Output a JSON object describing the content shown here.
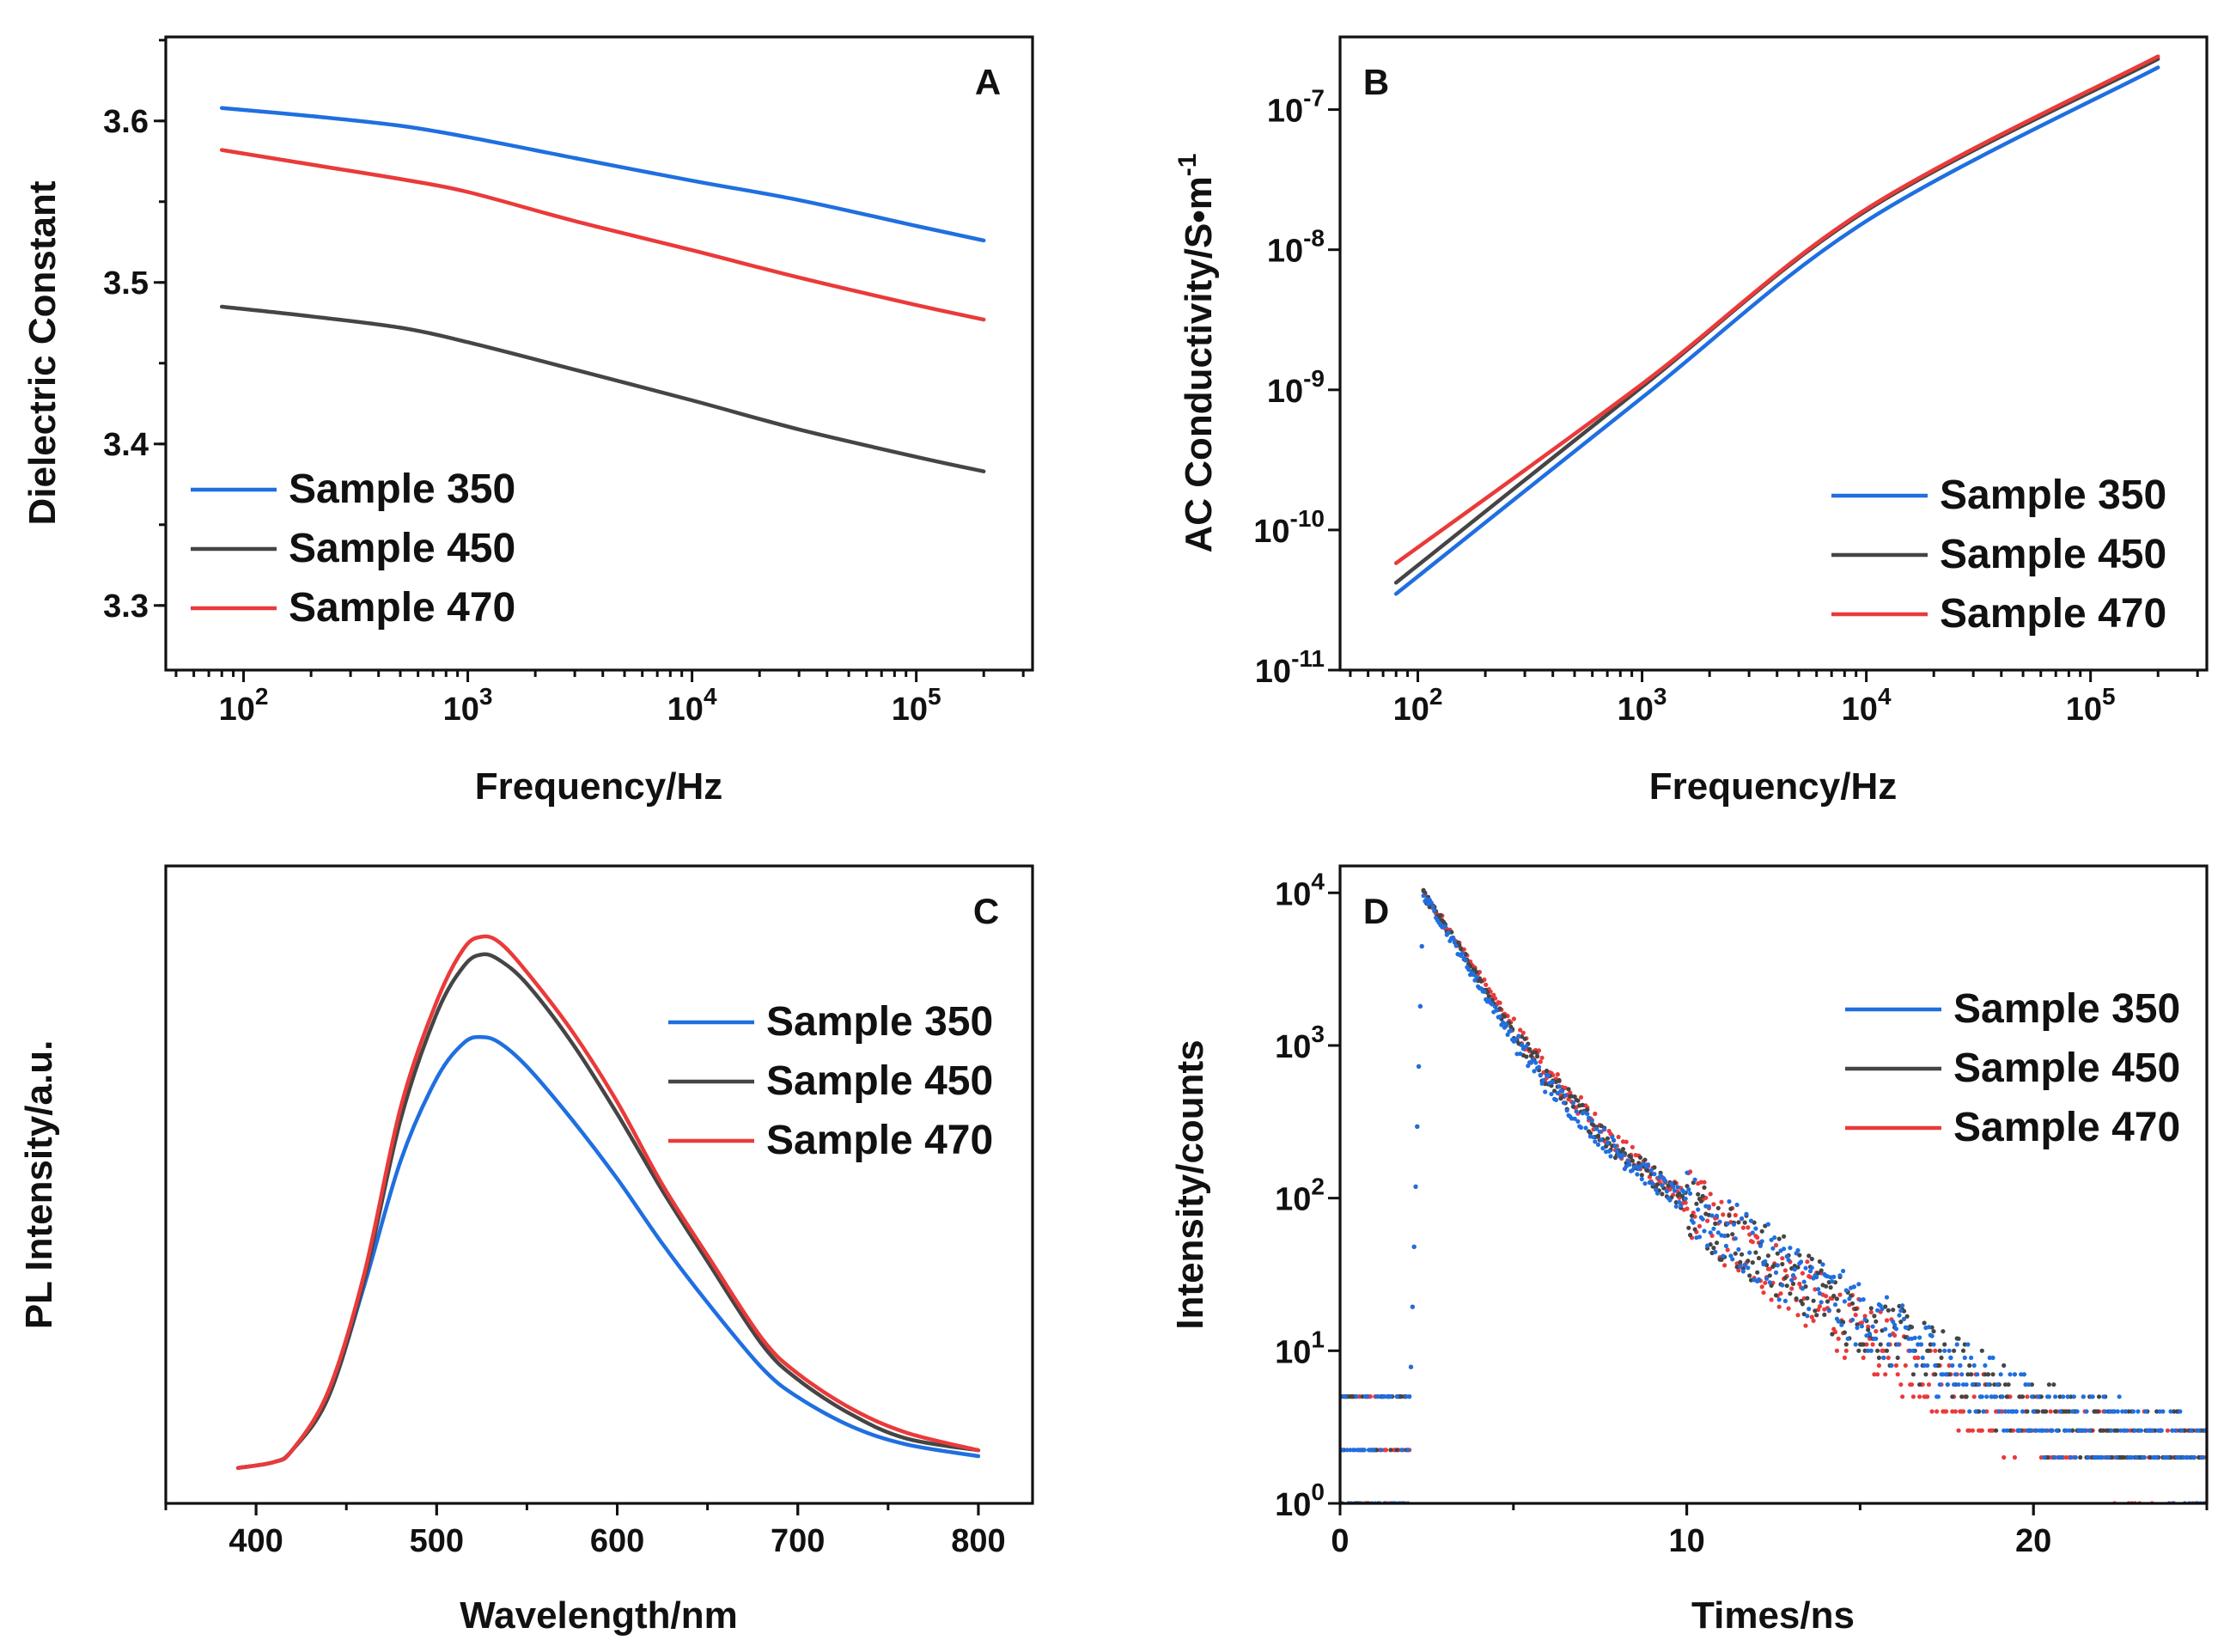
{
  "colors": {
    "sample_350": "#1f6fe0",
    "sample_450": "#454545",
    "sample_470": "#ea3a3a",
    "axis": "#111111"
  },
  "chart_data": [
    {
      "id": "A",
      "panel_label": "A",
      "type": "line",
      "xscale": "log",
      "yscale": "linear",
      "xlabel": "Frequency/Hz",
      "ylabel": "Dielectric Constant",
      "xlim": [
        45,
        330000
      ],
      "ylim": [
        3.26,
        3.652
      ],
      "xticks": [
        {
          "value": 100,
          "base": "10",
          "exp": "2"
        },
        {
          "value": 1000,
          "base": "10",
          "exp": "3"
        },
        {
          "value": 10000,
          "base": "10",
          "exp": "4"
        },
        {
          "value": 100000,
          "base": "10",
          "exp": "5"
        }
      ],
      "yticks": [
        {
          "value": 3.3,
          "label": "3.3"
        },
        {
          "value": 3.4,
          "label": "3.4"
        },
        {
          "value": 3.5,
          "label": "3.5"
        },
        {
          "value": 3.6,
          "label": "3.6"
        }
      ],
      "legend": "lower-left",
      "series": [
        {
          "name": "Sample 350",
          "color": "#1f6fe0",
          "x": [
            80,
            200,
            500,
            1000,
            3000,
            10000,
            30000,
            100000,
            200000
          ],
          "y": [
            3.608,
            3.603,
            3.597,
            3.59,
            3.577,
            3.563,
            3.551,
            3.535,
            3.526
          ]
        },
        {
          "name": "Sample 450",
          "color": "#454545",
          "x": [
            80,
            200,
            500,
            1000,
            3000,
            10000,
            30000,
            100000,
            200000
          ],
          "y": [
            3.485,
            3.479,
            3.472,
            3.463,
            3.446,
            3.427,
            3.409,
            3.392,
            3.383
          ]
        },
        {
          "name": "Sample 470",
          "color": "#ea3a3a",
          "x": [
            80,
            200,
            500,
            1000,
            3000,
            10000,
            30000,
            100000,
            200000
          ],
          "y": [
            3.582,
            3.573,
            3.564,
            3.556,
            3.538,
            3.52,
            3.503,
            3.486,
            3.477
          ]
        }
      ]
    },
    {
      "id": "B",
      "panel_label": "B",
      "type": "line",
      "xscale": "log",
      "yscale": "log",
      "xlabel": "Frequency/Hz",
      "ylabel_text": "AC Conductivity/S•m",
      "ylabel_exp": "-1",
      "xlim": [
        45,
        330000
      ],
      "ylim": [
        1e-11,
        3.3e-07
      ],
      "xticks": [
        {
          "value": 100,
          "base": "10",
          "exp": "2"
        },
        {
          "value": 1000,
          "base": "10",
          "exp": "3"
        },
        {
          "value": 10000,
          "base": "10",
          "exp": "4"
        },
        {
          "value": 100000,
          "base": "10",
          "exp": "5"
        }
      ],
      "yticks": [
        {
          "value": 1e-11,
          "base": "10",
          "exp": "-11"
        },
        {
          "value": 1e-10,
          "base": "10",
          "exp": "-10"
        },
        {
          "value": 1e-09,
          "base": "10",
          "exp": "-9"
        },
        {
          "value": 1e-08,
          "base": "10",
          "exp": "-8"
        },
        {
          "value": 1e-07,
          "base": "10",
          "exp": "-7"
        }
      ],
      "legend": "lower-right",
      "series": [
        {
          "name": "Sample 350",
          "color": "#1f6fe0",
          "x": [
            80,
            1000,
            10000,
            200000
          ],
          "y": [
            3.5e-11,
            8.8e-10,
            1.6e-08,
            2e-07
          ]
        },
        {
          "name": "Sample 450",
          "color": "#454545",
          "x": [
            80,
            1000,
            10000,
            200000
          ],
          "y": [
            4.2e-11,
            1.05e-09,
            1.9e-08,
            2.3e-07
          ]
        },
        {
          "name": "Sample 470",
          "color": "#ea3a3a",
          "x": [
            80,
            1000,
            10000,
            200000
          ],
          "y": [
            5.8e-11,
            1.1e-09,
            1.95e-08,
            2.4e-07
          ]
        }
      ]
    },
    {
      "id": "C",
      "panel_label": "C",
      "type": "line",
      "xscale": "linear",
      "yscale": "linear",
      "xlabel": "Wavelength/nm",
      "ylabel": "PL Intensity/a.u.",
      "xlim": [
        350,
        830
      ],
      "ylim": [
        0,
        1.08
      ],
      "xticks": [
        {
          "value": 400,
          "label": "400"
        },
        {
          "value": 500,
          "label": "500"
        },
        {
          "value": 600,
          "label": "600"
        },
        {
          "value": 700,
          "label": "700"
        },
        {
          "value": 800,
          "label": "800"
        }
      ],
      "yticks": [],
      "legend": "right",
      "series": [
        {
          "name": "Sample 350",
          "color": "#1f6fe0",
          "x": [
            390,
            410,
            420,
            440,
            460,
            480,
            500,
            515,
            525,
            535,
            550,
            575,
            600,
            625,
            650,
            680,
            700,
            730,
            760,
            800
          ],
          "y": [
            0.06,
            0.07,
            0.09,
            0.18,
            0.37,
            0.58,
            0.72,
            0.78,
            0.79,
            0.78,
            0.74,
            0.65,
            0.55,
            0.44,
            0.34,
            0.23,
            0.18,
            0.13,
            0.1,
            0.08
          ]
        },
        {
          "name": "Sample 450",
          "color": "#454545",
          "x": [
            390,
            410,
            420,
            440,
            460,
            480,
            500,
            515,
            525,
            535,
            550,
            575,
            600,
            625,
            650,
            680,
            700,
            730,
            760,
            800
          ],
          "y": [
            0.06,
            0.07,
            0.09,
            0.18,
            0.38,
            0.65,
            0.83,
            0.91,
            0.93,
            0.92,
            0.88,
            0.78,
            0.66,
            0.53,
            0.41,
            0.27,
            0.21,
            0.15,
            0.11,
            0.09
          ]
        },
        {
          "name": "Sample 470",
          "color": "#ea3a3a",
          "x": [
            390,
            410,
            420,
            440,
            460,
            480,
            500,
            515,
            525,
            535,
            550,
            575,
            600,
            625,
            650,
            680,
            700,
            730,
            760,
            800
          ],
          "y": [
            0.06,
            0.07,
            0.09,
            0.19,
            0.39,
            0.67,
            0.85,
            0.94,
            0.96,
            0.95,
            0.9,
            0.8,
            0.68,
            0.54,
            0.42,
            0.28,
            0.22,
            0.16,
            0.12,
            0.09
          ]
        }
      ]
    },
    {
      "id": "D",
      "panel_label": "D",
      "type": "scatter",
      "xscale": "linear",
      "yscale": "log",
      "xlabel": "Times/ns",
      "ylabel": "Intensity/counts",
      "xlim": [
        0,
        25
      ],
      "ylim": [
        1,
        15000
      ],
      "xticks": [
        {
          "value": 0,
          "label": "0"
        },
        {
          "value": 10,
          "label": "10"
        },
        {
          "value": 20,
          "label": "20"
        }
      ],
      "yticks": [
        {
          "value": 1,
          "base": "10",
          "exp": "0"
        },
        {
          "value": 10,
          "base": "10",
          "exp": "1"
        },
        {
          "value": 100,
          "base": "10",
          "exp": "2"
        },
        {
          "value": 1000,
          "base": "10",
          "exp": "3"
        },
        {
          "value": 10000,
          "base": "10",
          "exp": "4"
        }
      ],
      "legend": "top-right",
      "series": [
        {
          "name": "Sample 350",
          "color": "#1f6fe0",
          "x": [
            2.0,
            2.4,
            3,
            4,
            5,
            6,
            8,
            10,
            12,
            15,
            18,
            20,
            25
          ],
          "y": [
            3,
            9800,
            6000,
            2500,
            1100,
            550,
            200,
            90,
            45,
            17,
            7,
            4,
            2
          ]
        },
        {
          "name": "Sample 450",
          "color": "#454545",
          "x": [
            2.0,
            2.4,
            3,
            4,
            5,
            6,
            8,
            10,
            12,
            15,
            18,
            20,
            25
          ],
          "y": [
            3,
            9800,
            6200,
            2700,
            1200,
            600,
            210,
            95,
            45,
            16,
            7,
            4,
            2
          ]
        },
        {
          "name": "Sample 470",
          "color": "#ea3a3a",
          "x": [
            2.0,
            2.4,
            3,
            4,
            5,
            6,
            8,
            10,
            12,
            15,
            18,
            20,
            25
          ],
          "y": [
            3,
            9800,
            6400,
            2900,
            1300,
            650,
            220,
            95,
            40,
            13,
            5,
            3,
            2
          ]
        }
      ]
    }
  ]
}
